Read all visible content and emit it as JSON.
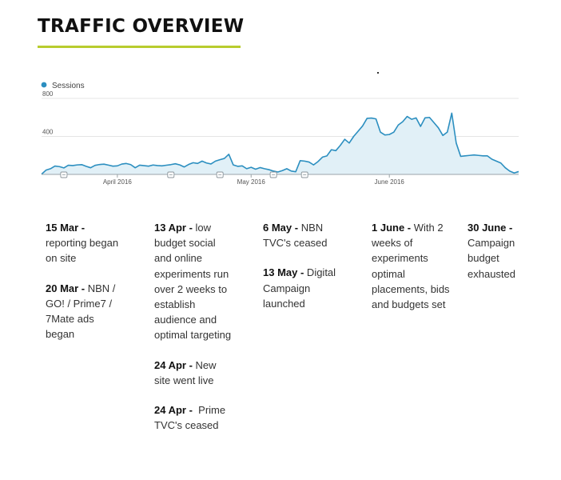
{
  "page": {
    "title": "TRAFFIC OVERVIEW",
    "accent_color": "#b8cc2e"
  },
  "chart_data": {
    "type": "area",
    "legend": [
      {
        "name": "Sessions",
        "color": "#2c8fc0",
        "placement": "top-left"
      }
    ],
    "series": [
      {
        "name": "Sessions",
        "color": "#2c8fc0",
        "fill": "#e1f0f7",
        "x": [
          "2016-03-15",
          "2016-03-16",
          "2016-03-17",
          "2016-03-18",
          "2016-03-19",
          "2016-03-20",
          "2016-03-21",
          "2016-03-22",
          "2016-03-23",
          "2016-03-24",
          "2016-03-25",
          "2016-03-26",
          "2016-03-27",
          "2016-03-28",
          "2016-03-29",
          "2016-03-30",
          "2016-03-31",
          "2016-04-01",
          "2016-04-02",
          "2016-04-03",
          "2016-04-04",
          "2016-04-05",
          "2016-04-06",
          "2016-04-07",
          "2016-04-08",
          "2016-04-09",
          "2016-04-10",
          "2016-04-11",
          "2016-04-12",
          "2016-04-13",
          "2016-04-14",
          "2016-04-15",
          "2016-04-16",
          "2016-04-17",
          "2016-04-18",
          "2016-04-19",
          "2016-04-20",
          "2016-04-21",
          "2016-04-22",
          "2016-04-23",
          "2016-04-24",
          "2016-04-25",
          "2016-04-26",
          "2016-04-27",
          "2016-04-28",
          "2016-04-29",
          "2016-04-30",
          "2016-05-01",
          "2016-05-02",
          "2016-05-03",
          "2016-05-04",
          "2016-05-05",
          "2016-05-06",
          "2016-05-07",
          "2016-05-08",
          "2016-05-09",
          "2016-05-10",
          "2016-05-11",
          "2016-05-12",
          "2016-05-13",
          "2016-05-14",
          "2016-05-15",
          "2016-05-16",
          "2016-05-17",
          "2016-05-18",
          "2016-05-19",
          "2016-05-20",
          "2016-05-21",
          "2016-05-22",
          "2016-05-23",
          "2016-05-24",
          "2016-05-25",
          "2016-05-26",
          "2016-05-27",
          "2016-05-28",
          "2016-05-29",
          "2016-05-30",
          "2016-05-31",
          "2016-06-01",
          "2016-06-02",
          "2016-06-03",
          "2016-06-04",
          "2016-06-05",
          "2016-06-06",
          "2016-06-07",
          "2016-06-08",
          "2016-06-09",
          "2016-06-10",
          "2016-06-11",
          "2016-06-12",
          "2016-06-13",
          "2016-06-14",
          "2016-06-15",
          "2016-06-16",
          "2016-06-17",
          "2016-06-18",
          "2016-06-19",
          "2016-06-20",
          "2016-06-21",
          "2016-06-22",
          "2016-06-23",
          "2016-06-24",
          "2016-06-25",
          "2016-06-26",
          "2016-06-27",
          "2016-06-28",
          "2016-06-29",
          "2016-06-30"
        ],
        "values": [
          2,
          45,
          60,
          88,
          82,
          68,
          96,
          93,
          100,
          103,
          85,
          70,
          95,
          104,
          108,
          98,
          87,
          90,
          109,
          115,
          103,
          70,
          97,
          92,
          87,
          99,
          93,
          90,
          97,
          103,
          112,
          100,
          78,
          105,
          123,
          115,
          140,
          120,
          110,
          140,
          155,
          168,
          212,
          100,
          85,
          90,
          60,
          75,
          55,
          72,
          60,
          50,
          35,
          25,
          40,
          60,
          35,
          28,
          145,
          140,
          130,
          100,
          135,
          182,
          195,
          260,
          250,
          305,
          370,
          330,
          400,
          455,
          510,
          590,
          593,
          584,
          445,
          415,
          420,
          445,
          520,
          555,
          610,
          580,
          595,
          505,
          595,
          600,
          545,
          490,
          410,
          445,
          645,
          330,
          190,
          195,
          200,
          205,
          200,
          195,
          195,
          160,
          140,
          120,
          70,
          35,
          15,
          30
        ]
      }
    ],
    "xlim": [
      "2016-03-15",
      "2016-06-30"
    ],
    "ylim": [
      0,
      800
    ],
    "y_ticks": [
      "800",
      "400"
    ],
    "x_tick_labels": [
      {
        "label": "April 2016",
        "date": "2016-04-01"
      },
      {
        "label": "May 2016",
        "date": "2016-05-01"
      },
      {
        "label": "June 2016",
        "date": "2016-06-01"
      }
    ],
    "annotation_markers": [
      "2016-03-20",
      "2016-04-13",
      "2016-04-24",
      "2016-05-06",
      "2016-05-13"
    ],
    "grid": true
  },
  "timeline": [
    {
      "entries": [
        {
          "date": "15 Mar -",
          "text": " reporting began on site"
        },
        {
          "date": "20 Mar -",
          "text": " NBN / GO! / Prime7 / 7Mate ads began"
        }
      ]
    },
    {
      "entries": [
        {
          "date": "13 Apr -",
          "text": " low budget social and online experiments run over 2 weeks to establish audience and optimal targeting"
        },
        {
          "date": "24 Apr -",
          "text": " New site went live"
        },
        {
          "date": "24 Apr -",
          "text": "  Prime TVC's ceased"
        }
      ]
    },
    {
      "entries": [
        {
          "date": "6 May -",
          "text": " NBN TVC's ceased"
        },
        {
          "date": "13 May -",
          "text": " Digital Campaign launched"
        }
      ]
    },
    {
      "entries": [
        {
          "date": "1 June -",
          "text": " With 2 weeks of experiments optimal placements, bids and budgets set"
        }
      ]
    },
    {
      "entries": [
        {
          "date": "30 June -",
          "text": " Campaign budget exhausted"
        }
      ]
    }
  ]
}
